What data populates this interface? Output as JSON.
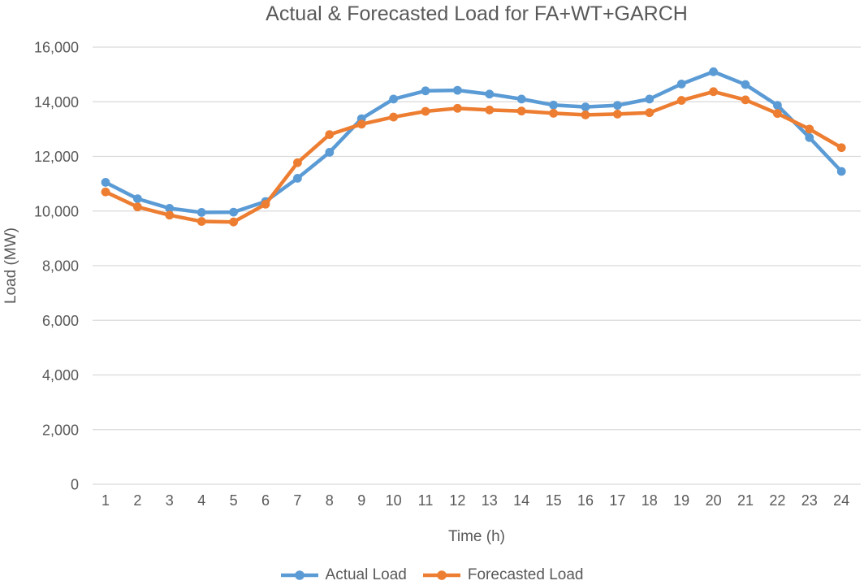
{
  "title": "Actual & Forecasted Load for FA+WT+GARCH",
  "colors": {
    "actual_series": "#5B9BD5",
    "forecast_series": "#ED7D31",
    "gridline": "#D9D9D9",
    "text": "#595959",
    "background": "#FFFFFF"
  },
  "chart_data": {
    "type": "line",
    "title": "Actual & Forecasted Load for FA+WT+GARCH",
    "xlabel": "Time (h)",
    "ylabel": "Load (MW)",
    "ylim": [
      0,
      16000
    ],
    "grid": true,
    "legend_position": "bottom",
    "categories": [
      "1",
      "2",
      "3",
      "4",
      "5",
      "6",
      "7",
      "8",
      "9",
      "10",
      "11",
      "12",
      "13",
      "14",
      "15",
      "16",
      "17",
      "18",
      "19",
      "20",
      "21",
      "22",
      "23",
      "24"
    ],
    "ytick_values": [
      0,
      2000,
      4000,
      6000,
      8000,
      10000,
      12000,
      14000,
      16000
    ],
    "ytick_labels": [
      "0",
      "2,000",
      "4,000",
      "6,000",
      "8,000",
      "10,000",
      "12,000",
      "14,000",
      "16,000"
    ],
    "series": [
      {
        "name": "Actual Load",
        "color": "#5B9BD5",
        "values": [
          11050,
          10450,
          10100,
          9950,
          9960,
          10350,
          11200,
          12150,
          13380,
          14100,
          14400,
          14420,
          14280,
          14100,
          13880,
          13810,
          13870,
          14100,
          14650,
          15100,
          14630,
          13870,
          12690,
          11450
        ]
      },
      {
        "name": "Forecasted Load",
        "color": "#ED7D31",
        "values": [
          10700,
          10150,
          9850,
          9620,
          9600,
          10250,
          11770,
          12800,
          13180,
          13440,
          13650,
          13760,
          13700,
          13660,
          13580,
          13520,
          13550,
          13600,
          14050,
          14370,
          14070,
          13570,
          13000,
          12320
        ]
      }
    ]
  }
}
